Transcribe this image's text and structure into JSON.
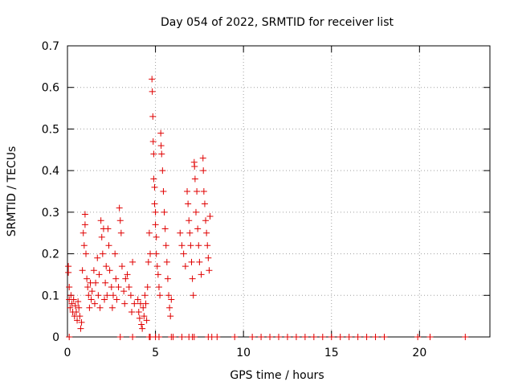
{
  "chart_data": {
    "type": "scatter",
    "title": "Day 054 of 2022, SRMTID for receiver list",
    "xlabel": "GPS time / hours",
    "ylabel": "SRMTID / TECUs",
    "xlim": [
      0,
      24
    ],
    "ylim": [
      0,
      0.7
    ],
    "xticks": [
      0,
      5,
      10,
      15,
      20
    ],
    "yticks": [
      0,
      0.1,
      0.2,
      0.3,
      0.4,
      0.5,
      0.6,
      0.7
    ],
    "grid": true,
    "marker": "+",
    "color": "#e00000",
    "series": [
      {
        "name": "SRMTID",
        "points": [
          [
            0.05,
            0.17
          ],
          [
            0.05,
            0.155
          ],
          [
            0.1,
            0.12
          ],
          [
            0.1,
            0.09
          ],
          [
            0.15,
            0.07
          ],
          [
            0.2,
            0.1
          ],
          [
            0.25,
            0.08
          ],
          [
            0.3,
            0.06
          ],
          [
            0.35,
            0.09
          ],
          [
            0.4,
            0.05
          ],
          [
            0.45,
            0.075
          ],
          [
            0.5,
            0.06
          ],
          [
            0.55,
            0.04
          ],
          [
            0.6,
            0.085
          ],
          [
            0.65,
            0.07
          ],
          [
            0.7,
            0.05
          ],
          [
            0.75,
            0.02
          ],
          [
            0.8,
            0.035
          ],
          [
            0.85,
            0.16
          ],
          [
            0.9,
            0.25
          ],
          [
            0.95,
            0.22
          ],
          [
            1.0,
            0.295
          ],
          [
            1.0,
            0.27
          ],
          [
            1.05,
            0.2
          ],
          [
            1.1,
            0.14
          ],
          [
            1.15,
            0.12
          ],
          [
            1.2,
            0.1
          ],
          [
            1.25,
            0.07
          ],
          [
            1.3,
            0.13
          ],
          [
            1.35,
            0.09
          ],
          [
            1.4,
            0.11
          ],
          [
            1.5,
            0.16
          ],
          [
            1.55,
            0.08
          ],
          [
            1.6,
            0.13
          ],
          [
            1.7,
            0.19
          ],
          [
            1.75,
            0.1
          ],
          [
            1.8,
            0.15
          ],
          [
            1.85,
            0.07
          ],
          [
            1.9,
            0.28
          ],
          [
            1.95,
            0.24
          ],
          [
            2.0,
            0.2
          ],
          [
            2.05,
            0.26
          ],
          [
            2.1,
            0.09
          ],
          [
            2.15,
            0.13
          ],
          [
            2.2,
            0.17
          ],
          [
            2.25,
            0.1
          ],
          [
            2.3,
            0.26
          ],
          [
            2.35,
            0.22
          ],
          [
            2.4,
            0.16
          ],
          [
            2.5,
            0.12
          ],
          [
            2.55,
            0.07
          ],
          [
            2.6,
            0.1
          ],
          [
            2.7,
            0.2
          ],
          [
            2.75,
            0.14
          ],
          [
            2.8,
            0.09
          ],
          [
            2.9,
            0.12
          ],
          [
            2.95,
            0.31
          ],
          [
            3.0,
            0.28
          ],
          [
            3.05,
            0.25
          ],
          [
            3.1,
            0.17
          ],
          [
            3.2,
            0.11
          ],
          [
            3.25,
            0.08
          ],
          [
            3.3,
            0.14
          ],
          [
            3.4,
            0.15
          ],
          [
            3.5,
            0.12
          ],
          [
            3.6,
            0.1
          ],
          [
            3.65,
            0.06
          ],
          [
            3.7,
            0.18
          ],
          [
            3.8,
            0.08
          ],
          [
            4.0,
            0.09
          ],
          [
            4.05,
            0.06
          ],
          [
            4.1,
            0.045
          ],
          [
            4.15,
            0.08
          ],
          [
            4.2,
            0.03
          ],
          [
            4.25,
            0.02
          ],
          [
            4.3,
            0.07
          ],
          [
            4.35,
            0.05
          ],
          [
            4.4,
            0.1
          ],
          [
            4.45,
            0.08
          ],
          [
            4.5,
            0.04
          ],
          [
            4.55,
            0.12
          ],
          [
            4.6,
            0.18
          ],
          [
            4.65,
            0.25
          ],
          [
            4.7,
            0.2
          ],
          [
            4.8,
            0.62
          ],
          [
            4.82,
            0.59
          ],
          [
            4.85,
            0.53
          ],
          [
            4.87,
            0.47
          ],
          [
            4.9,
            0.44
          ],
          [
            4.9,
            0.38
          ],
          [
            4.95,
            0.36
          ],
          [
            4.95,
            0.32
          ],
          [
            5.0,
            0.3
          ],
          [
            5.0,
            0.27
          ],
          [
            5.05,
            0.24
          ],
          [
            5.05,
            0.2
          ],
          [
            5.1,
            0.17
          ],
          [
            5.15,
            0.15
          ],
          [
            5.2,
            0.12
          ],
          [
            5.25,
            0.1
          ],
          [
            5.3,
            0.49
          ],
          [
            5.32,
            0.46
          ],
          [
            5.35,
            0.44
          ],
          [
            5.4,
            0.4
          ],
          [
            5.45,
            0.35
          ],
          [
            5.5,
            0.3
          ],
          [
            5.55,
            0.26
          ],
          [
            5.6,
            0.22
          ],
          [
            5.65,
            0.18
          ],
          [
            5.7,
            0.14
          ],
          [
            5.75,
            0.1
          ],
          [
            5.8,
            0.07
          ],
          [
            5.85,
            0.05
          ],
          [
            5.9,
            0.09
          ],
          [
            6.4,
            0.25
          ],
          [
            6.5,
            0.22
          ],
          [
            6.6,
            0.2
          ],
          [
            6.7,
            0.17
          ],
          [
            6.8,
            0.35
          ],
          [
            6.85,
            0.32
          ],
          [
            6.9,
            0.28
          ],
          [
            6.95,
            0.25
          ],
          [
            7.0,
            0.22
          ],
          [
            7.05,
            0.18
          ],
          [
            7.1,
            0.14
          ],
          [
            7.15,
            0.1
          ],
          [
            7.2,
            0.42
          ],
          [
            7.22,
            0.41
          ],
          [
            7.25,
            0.38
          ],
          [
            7.3,
            0.3
          ],
          [
            7.35,
            0.35
          ],
          [
            7.4,
            0.26
          ],
          [
            7.45,
            0.22
          ],
          [
            7.5,
            0.18
          ],
          [
            7.6,
            0.15
          ],
          [
            7.7,
            0.43
          ],
          [
            7.72,
            0.4
          ],
          [
            7.75,
            0.35
          ],
          [
            7.8,
            0.32
          ],
          [
            7.85,
            0.28
          ],
          [
            7.9,
            0.25
          ],
          [
            7.95,
            0.22
          ],
          [
            8.0,
            0.19
          ],
          [
            8.05,
            0.16
          ],
          [
            8.1,
            0.29
          ],
          [
            0.1,
            0
          ],
          [
            3.0,
            0
          ],
          [
            3.7,
            0
          ],
          [
            4.65,
            0
          ],
          [
            4.7,
            0
          ],
          [
            5.0,
            0
          ],
          [
            5.2,
            0
          ],
          [
            5.9,
            0
          ],
          [
            6.0,
            0
          ],
          [
            6.5,
            0
          ],
          [
            6.9,
            0
          ],
          [
            7.1,
            0
          ],
          [
            7.2,
            0
          ],
          [
            8.0,
            0
          ],
          [
            8.2,
            0
          ],
          [
            8.5,
            0
          ],
          [
            9.5,
            0
          ],
          [
            10.5,
            0
          ],
          [
            11.0,
            0
          ],
          [
            11.5,
            0
          ],
          [
            12.0,
            0
          ],
          [
            12.5,
            0
          ],
          [
            13.0,
            0
          ],
          [
            13.5,
            0
          ],
          [
            14.0,
            0
          ],
          [
            14.5,
            0
          ],
          [
            15.0,
            0
          ],
          [
            15.5,
            0
          ],
          [
            16.0,
            0
          ],
          [
            16.5,
            0
          ],
          [
            17.0,
            0
          ],
          [
            17.5,
            0
          ],
          [
            18.0,
            0
          ],
          [
            19.9,
            0
          ],
          [
            20.6,
            0
          ],
          [
            22.6,
            0
          ]
        ]
      }
    ]
  }
}
